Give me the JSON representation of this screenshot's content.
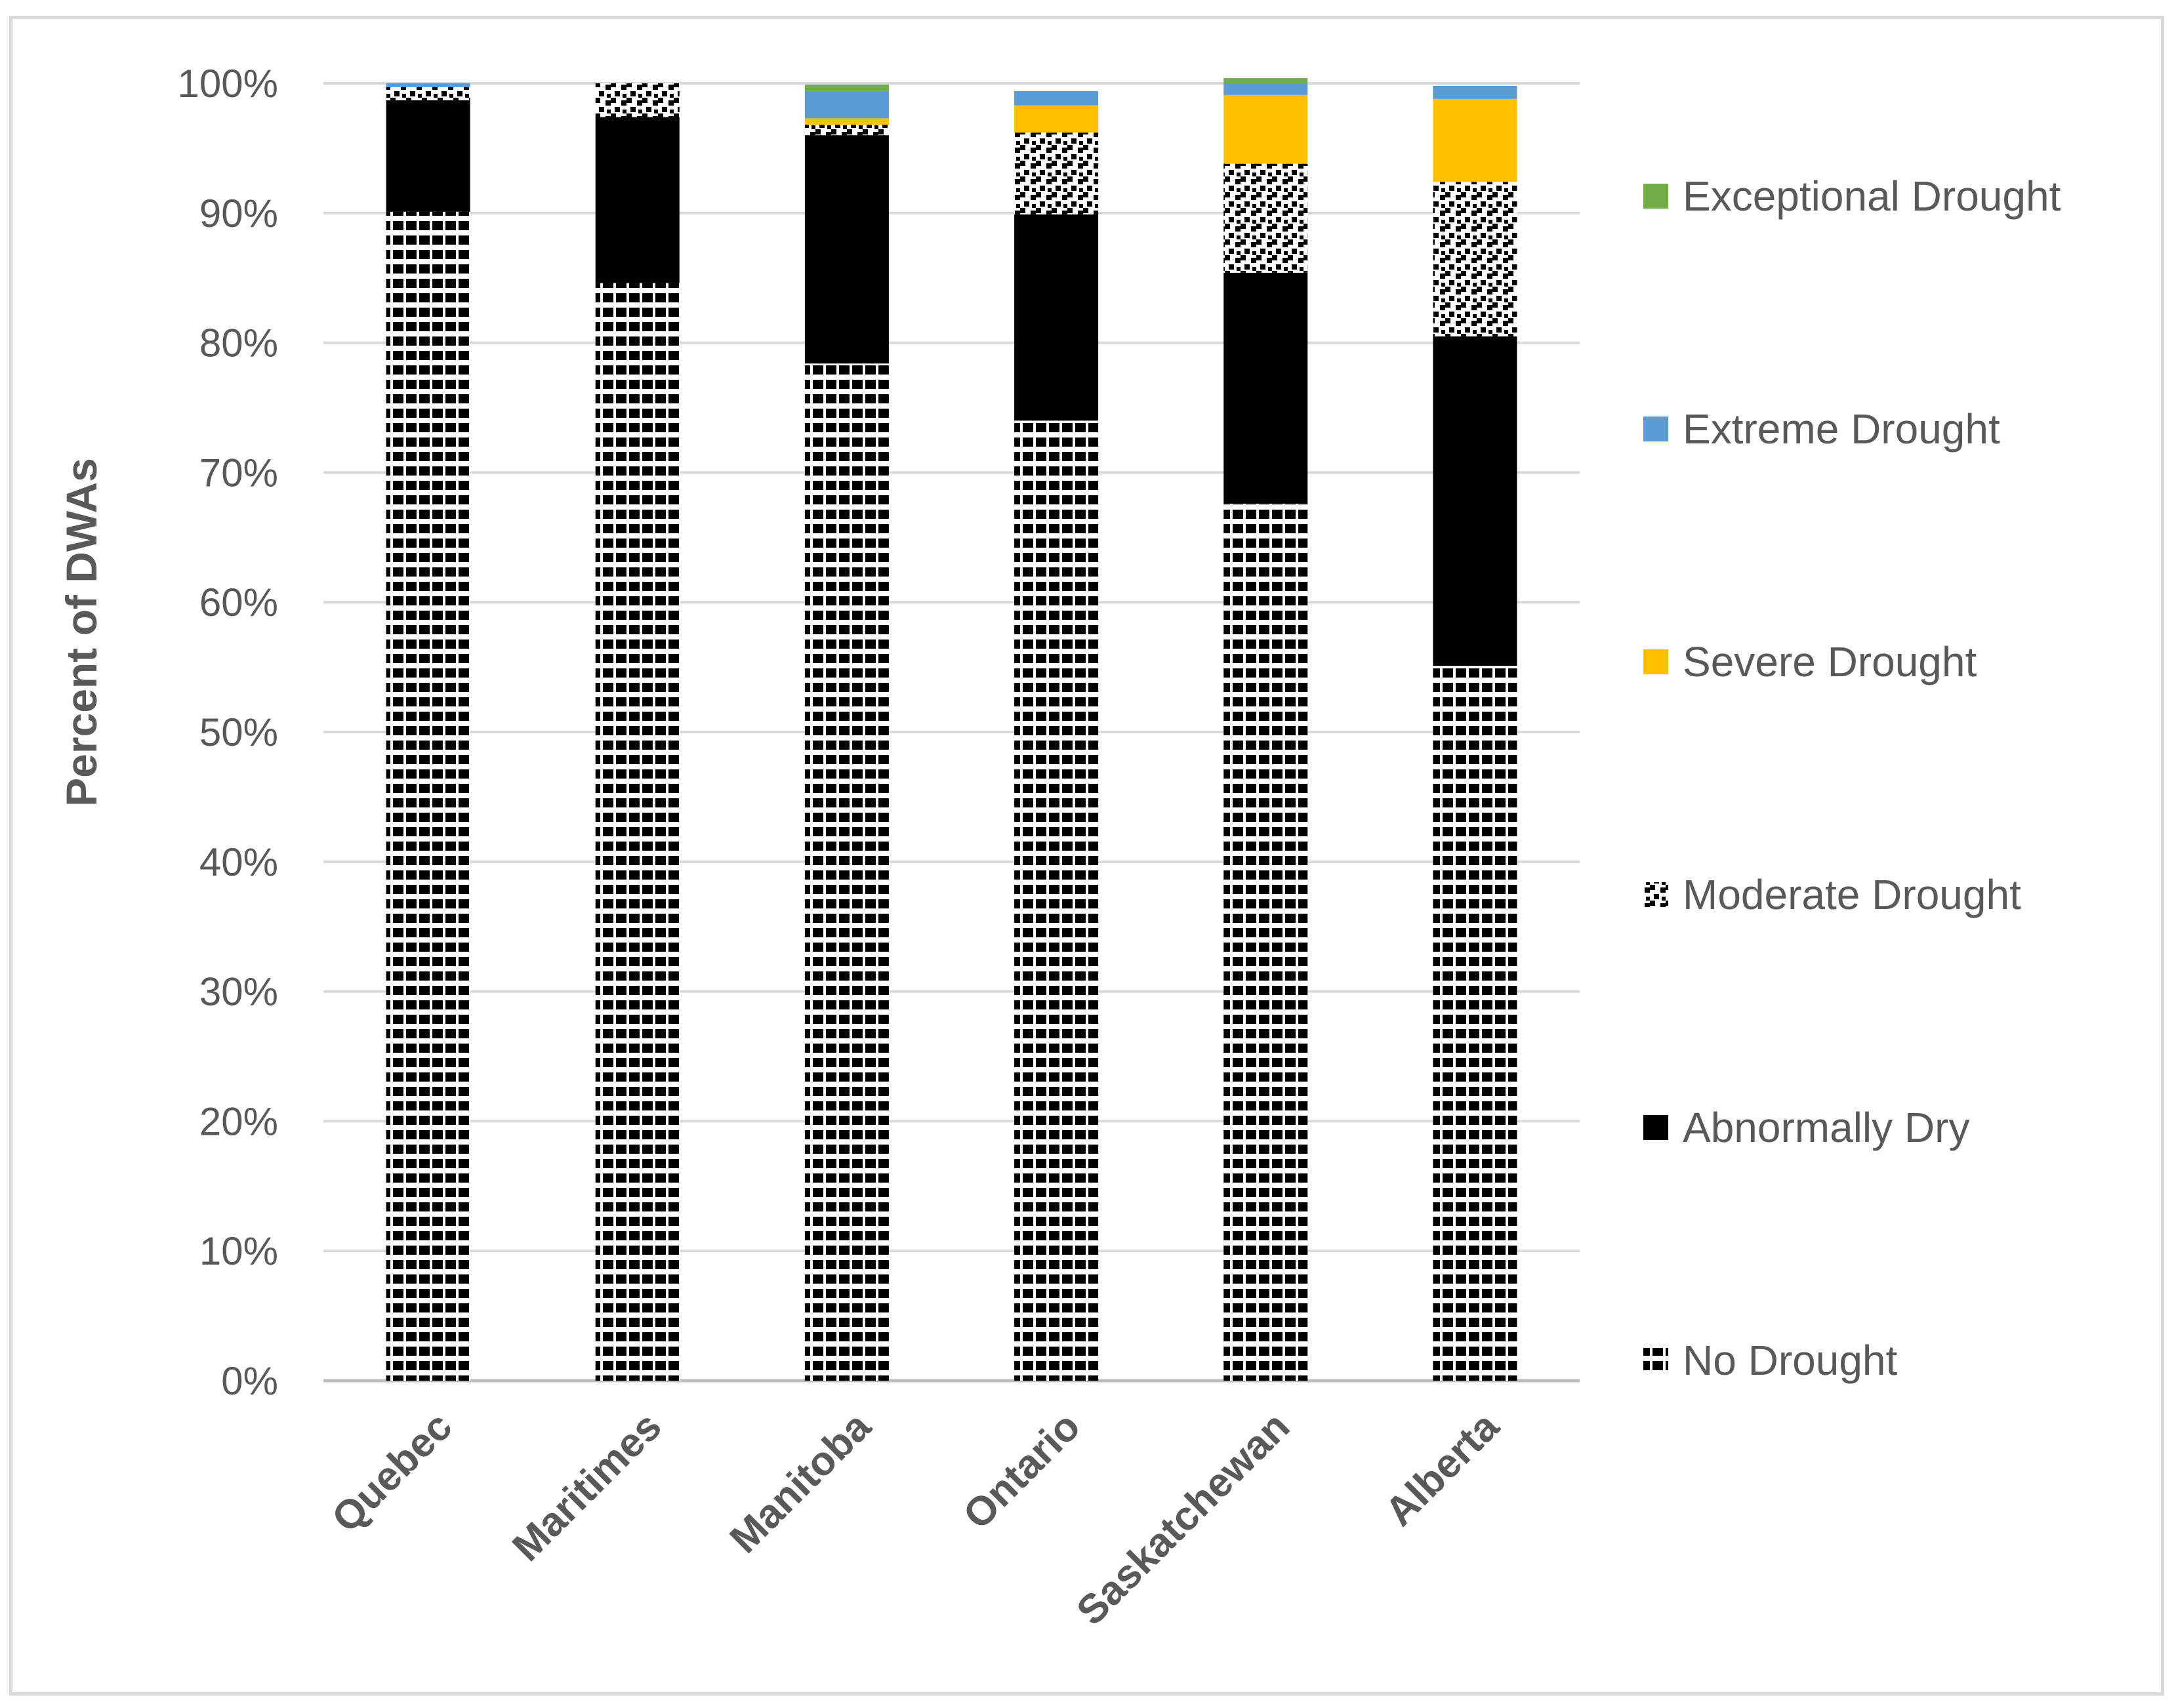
{
  "chart_data": {
    "type": "bar",
    "stacked": true,
    "title": "",
    "xlabel": "",
    "ylabel": "Percent of DWAs",
    "ylim": [
      0,
      100
    ],
    "yticks": [
      "0%",
      "10%",
      "20%",
      "30%",
      "40%",
      "50%",
      "60%",
      "70%",
      "80%",
      "90%",
      "100%"
    ],
    "categories": [
      "Quebec",
      "Maritimes",
      "Manitoba",
      "Ontario",
      "Saskatchewan",
      "Alberta"
    ],
    "series": [
      {
        "name": "No Drought",
        "key": "no",
        "color": "#000000",
        "pattern": "hstripes",
        "values": [
          90.1,
          84.6,
          78.4,
          74.0,
          67.6,
          55.1
        ]
      },
      {
        "name": "Abnormally Dry",
        "key": "dry",
        "color": "#000000",
        "pattern": "solid",
        "values": [
          8.6,
          12.8,
          17.6,
          15.9,
          17.8,
          25.4
        ]
      },
      {
        "name": "Moderate Drought",
        "key": "moderate",
        "color": "#000000",
        "pattern": "checker",
        "values": [
          1.0,
          2.6,
          0.8,
          6.3,
          8.4,
          11.9
        ]
      },
      {
        "name": "Severe Drought",
        "key": "severe",
        "color": "#ffc000",
        "pattern": "solid",
        "values": [
          0.0,
          0.0,
          0.5,
          2.1,
          5.3,
          6.4
        ]
      },
      {
        "name": "Extreme Drought",
        "key": "extreme",
        "color": "#5b9bd5",
        "pattern": "solid",
        "values": [
          0.3,
          0.0,
          2.1,
          1.1,
          0.9,
          1.0
        ]
      },
      {
        "name": "Exceptional Drought",
        "key": "exceptional",
        "color": "#70ad47",
        "pattern": "solid",
        "values": [
          0.0,
          0.0,
          0.5,
          0.0,
          0.4,
          0.0
        ]
      }
    ],
    "legend_position": "right",
    "grid": true
  }
}
